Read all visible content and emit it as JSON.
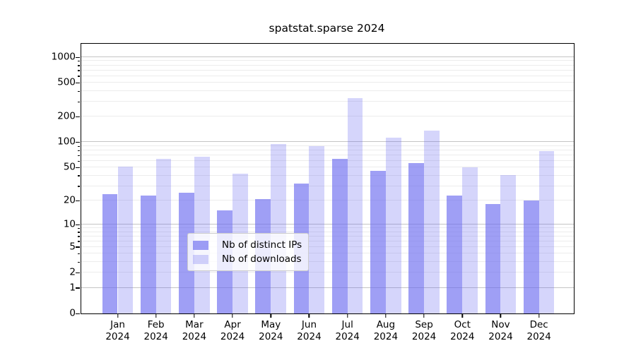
{
  "title": "spatstat.sparse 2024",
  "x_axis": {
    "months": [
      "Jan",
      "Feb",
      "Mar",
      "Apr",
      "May",
      "Jun",
      "Jul",
      "Aug",
      "Sep",
      "Oct",
      "Nov",
      "Dec"
    ],
    "year": "2024"
  },
  "y_axis": {
    "ticks": [
      0,
      1,
      2,
      5,
      10,
      20,
      50,
      100,
      200,
      500,
      1000
    ],
    "minor_gridlines": [
      2,
      3,
      4,
      5,
      6,
      7,
      8,
      9,
      20,
      30,
      40,
      50,
      60,
      70,
      80,
      90,
      200,
      300,
      400,
      500,
      600,
      700,
      800,
      900
    ],
    "major_gridlines": [
      1,
      10,
      100,
      1000
    ]
  },
  "legend": {
    "items": [
      {
        "label": "Nb of distinct IPs",
        "series": "ips"
      },
      {
        "label": "Nb of downloads",
        "series": "downloads"
      }
    ]
  },
  "colors": {
    "ips": "rgba(105,105,240,0.64)",
    "downloads": "rgba(105,105,240,0.28)",
    "grid_minor": "#ececec",
    "grid_major": "#c4c4c4",
    "axis": "#000000",
    "legend_border": "#cccccc"
  },
  "chart_data": {
    "type": "bar",
    "title": "spatstat.sparse 2024",
    "scale": "log1p",
    "categories": [
      "Jan 2024",
      "Feb 2024",
      "Mar 2024",
      "Apr 2024",
      "May 2024",
      "Jun 2024",
      "Jul 2024",
      "Aug 2024",
      "Sep 2024",
      "Oct 2024",
      "Nov 2024",
      "Dec 2024"
    ],
    "series": [
      {
        "name": "Nb of distinct IPs",
        "values": [
          24,
          23,
          25,
          15,
          21,
          32,
          64,
          46,
          57,
          23,
          18,
          20
        ]
      },
      {
        "name": "Nb of downloads",
        "values": [
          51,
          64,
          68,
          42,
          95,
          90,
          330,
          113,
          137,
          50,
          41,
          79
        ]
      }
    ],
    "xlabel": "",
    "ylabel": "",
    "ylim": [
      0,
      1430
    ],
    "yticks": [
      0,
      1,
      2,
      5,
      10,
      20,
      50,
      100,
      200,
      500,
      1000
    ],
    "grid": true,
    "legend_position": "lower center"
  }
}
